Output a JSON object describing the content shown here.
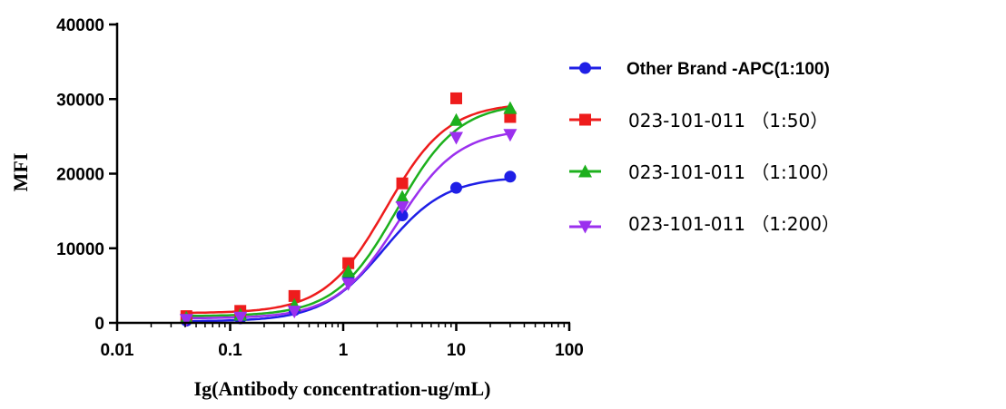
{
  "chart_data": {
    "type": "scatter",
    "xlabel": "Ig(Antibody concentration-ug/mL)",
    "ylabel": "MFI",
    "xscale": "log",
    "xlim": [
      0.01,
      100
    ],
    "ylim": [
      0,
      40000
    ],
    "x_ticks": [
      0.01,
      0.1,
      1,
      10,
      100
    ],
    "x_tick_labels": [
      "0.01",
      "0.1",
      "1",
      "10",
      "100"
    ],
    "y_ticks": [
      0,
      10000,
      20000,
      30000,
      40000
    ],
    "y_tick_labels": [
      "0",
      "10000",
      "20000",
      "30000",
      "40000"
    ],
    "grid": false,
    "legend_position": "right",
    "x": [
      0.041,
      0.123,
      0.37,
      1.11,
      3.33,
      10,
      30
    ],
    "series": [
      {
        "name": "Other Brand -APC(1:100)",
        "color": "#1f1fe6",
        "marker": "circle",
        "values": [
          300,
          600,
          1700,
          6200,
          14400,
          18100,
          19600
        ],
        "fit": {
          "bottom": 200,
          "top": 19600,
          "ec50": 2.3,
          "hill": 1.6
        }
      },
      {
        "name": "023-101-011 （1:50）",
        "color": "#ee1c1c",
        "marker": "square",
        "values": [
          900,
          1600,
          3600,
          8000,
          18700,
          30100,
          27600
        ],
        "fit": {
          "bottom": 1300,
          "top": 29500,
          "ec50": 2.4,
          "hill": 1.6
        }
      },
      {
        "name": "023-101-011 （1:100）",
        "color": "#1db01d",
        "marker": "triangle-up",
        "values": [
          700,
          1100,
          2400,
          6900,
          16900,
          27200,
          28800
        ],
        "fit": {
          "bottom": 900,
          "top": 29500,
          "ec50": 3.0,
          "hill": 1.6
        }
      },
      {
        "name": "023-101-011 （1:200）",
        "color": "#9b30ee",
        "marker": "triangle-down",
        "values": [
          400,
          700,
          1500,
          5200,
          15500,
          24800,
          25200
        ],
        "fit": {
          "bottom": 600,
          "top": 26000,
          "ec50": 3.0,
          "hill": 1.6
        }
      }
    ]
  }
}
